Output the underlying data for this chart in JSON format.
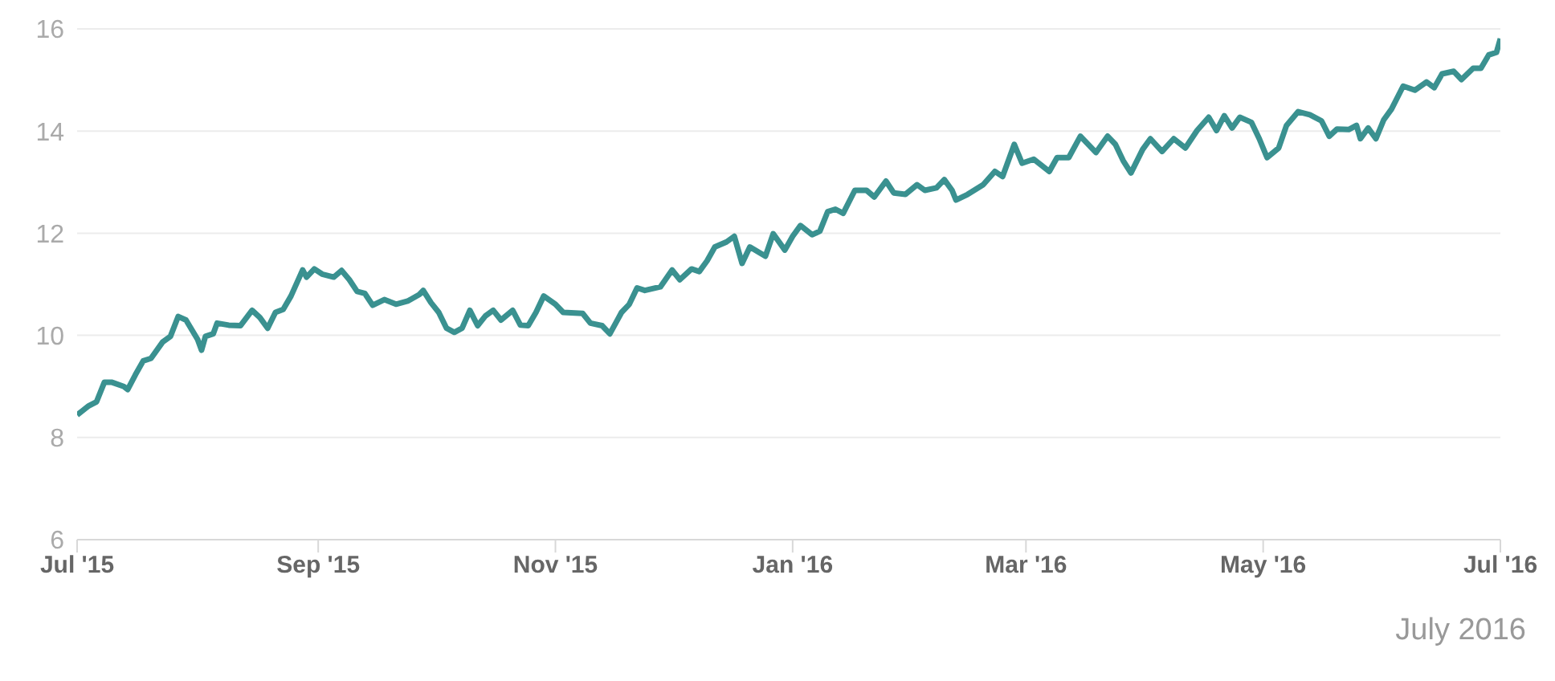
{
  "chart_data": {
    "type": "line",
    "x": [
      "2015-07-01",
      "2015-07-04",
      "2015-07-06",
      "2015-07-08",
      "2015-07-10",
      "2015-07-13",
      "2015-07-14",
      "2015-07-16",
      "2015-07-18",
      "2015-07-20",
      "2015-07-23",
      "2015-07-25",
      "2015-07-27",
      "2015-07-29",
      "2015-08-01",
      "2015-08-02",
      "2015-08-03",
      "2015-08-05",
      "2015-08-06",
      "2015-08-09",
      "2015-08-12",
      "2015-08-15",
      "2015-08-17",
      "2015-08-19",
      "2015-08-21",
      "2015-08-23",
      "2015-08-25",
      "2015-08-28",
      "2015-08-29",
      "2015-08-31",
      "2015-09-02",
      "2015-09-05",
      "2015-09-07",
      "2015-09-09",
      "2015-09-11",
      "2015-09-13",
      "2015-09-15",
      "2015-09-18",
      "2015-09-21",
      "2015-09-24",
      "2015-09-27",
      "2015-09-28",
      "2015-09-30",
      "2015-10-02",
      "2015-10-04",
      "2015-10-06",
      "2015-10-08",
      "2015-10-10",
      "2015-10-12",
      "2015-10-14",
      "2015-10-16",
      "2015-10-18",
      "2015-10-21",
      "2015-10-23",
      "2015-10-25",
      "2015-10-27",
      "2015-10-29",
      "2015-11-01",
      "2015-11-03",
      "2015-11-08",
      "2015-11-10",
      "2015-11-13",
      "2015-11-15",
      "2015-11-18",
      "2015-11-20",
      "2015-11-22",
      "2015-11-24",
      "2015-11-28",
      "2015-12-01",
      "2015-12-03",
      "2015-12-06",
      "2015-12-08",
      "2015-12-10",
      "2015-12-12",
      "2015-12-15",
      "2015-12-17",
      "2015-12-19",
      "2015-12-21",
      "2015-12-25",
      "2015-12-27",
      "2015-12-30",
      "2016-01-01",
      "2016-01-03",
      "2016-01-06",
      "2016-01-08",
      "2016-01-10",
      "2016-01-12",
      "2016-01-14",
      "2016-01-17",
      "2016-01-20",
      "2016-01-22",
      "2016-01-25",
      "2016-01-27",
      "2016-01-30",
      "2016-02-02",
      "2016-02-04",
      "2016-02-07",
      "2016-02-09",
      "2016-02-11",
      "2016-02-12",
      "2016-02-15",
      "2016-02-19",
      "2016-02-22",
      "2016-02-24",
      "2016-02-27",
      "2016-02-29",
      "2016-03-03",
      "2016-03-07",
      "2016-03-09",
      "2016-03-12",
      "2016-03-15",
      "2016-03-19",
      "2016-03-22",
      "2016-03-24",
      "2016-03-26",
      "2016-03-28",
      "2016-03-31",
      "2016-04-02",
      "2016-04-05",
      "2016-04-08",
      "2016-04-11",
      "2016-04-14",
      "2016-04-17",
      "2016-04-19",
      "2016-04-21",
      "2016-04-23",
      "2016-04-25",
      "2016-04-28",
      "2016-04-30",
      "2016-05-02",
      "2016-05-05",
      "2016-05-07",
      "2016-05-10",
      "2016-05-13",
      "2016-05-16",
      "2016-05-18",
      "2016-05-20",
      "2016-05-23",
      "2016-05-25",
      "2016-05-26",
      "2016-05-28",
      "2016-05-30",
      "2016-06-01",
      "2016-06-03",
      "2016-06-06",
      "2016-06-09",
      "2016-06-12",
      "2016-06-14",
      "2016-06-16",
      "2016-06-19",
      "2016-06-21",
      "2016-06-24",
      "2016-06-26",
      "2016-06-28",
      "2016-06-30",
      "2016-07-01"
    ],
    "series": [
      {
        "color": "#3a9190",
        "values": [
          8.44,
          8.62,
          8.7,
          9.08,
          9.08,
          9.0,
          8.94,
          9.23,
          9.5,
          9.55,
          9.87,
          9.98,
          10.37,
          10.3,
          9.92,
          9.71,
          9.98,
          10.03,
          10.24,
          10.2,
          10.19,
          10.49,
          10.35,
          10.14,
          10.45,
          10.51,
          10.77,
          11.28,
          11.14,
          11.3,
          11.2,
          11.14,
          11.27,
          11.09,
          10.86,
          10.82,
          10.59,
          10.7,
          10.61,
          10.67,
          10.8,
          10.88,
          10.64,
          10.45,
          10.14,
          10.06,
          10.14,
          10.49,
          10.19,
          10.38,
          10.49,
          10.3,
          10.49,
          10.2,
          10.19,
          10.45,
          10.77,
          10.61,
          10.45,
          10.43,
          10.24,
          10.19,
          10.03,
          10.45,
          10.61,
          10.93,
          10.88,
          10.95,
          11.28,
          11.09,
          11.3,
          11.25,
          11.46,
          11.73,
          11.83,
          11.94,
          11.41,
          11.73,
          11.55,
          11.99,
          11.67,
          11.94,
          12.15,
          11.97,
          12.04,
          12.42,
          12.47,
          12.39,
          12.84,
          12.84,
          12.71,
          13.02,
          12.79,
          12.76,
          12.95,
          12.84,
          12.89,
          13.05,
          12.84,
          12.65,
          12.76,
          12.95,
          13.21,
          13.11,
          13.74,
          13.37,
          13.45,
          13.21,
          13.48,
          13.48,
          13.9,
          13.58,
          13.9,
          13.74,
          13.42,
          13.18,
          13.64,
          13.85,
          13.6,
          13.85,
          13.67,
          14.01,
          14.27,
          14.01,
          14.3,
          14.06,
          14.27,
          14.17,
          13.85,
          13.48,
          13.67,
          14.11,
          14.38,
          14.32,
          14.2,
          13.9,
          14.04,
          14.03,
          14.11,
          13.85,
          14.06,
          13.85,
          14.22,
          14.43,
          14.88,
          14.8,
          14.96,
          14.85,
          15.12,
          15.17,
          15.01,
          15.23,
          15.23,
          15.49,
          15.54,
          15.81
        ]
      }
    ],
    "xlim": [
      "2015-07-01",
      "2016-07-01"
    ],
    "xticks": [
      {
        "value": "2015-07-01",
        "label": "Jul '15"
      },
      {
        "value": "2015-09-01",
        "label": "Sep '15"
      },
      {
        "value": "2015-11-01",
        "label": "Nov '15"
      },
      {
        "value": "2016-01-01",
        "label": "Jan '16"
      },
      {
        "value": "2016-03-01",
        "label": "Mar '16"
      },
      {
        "value": "2016-05-01",
        "label": "May '16"
      },
      {
        "value": "2016-07-01",
        "label": "Jul '16"
      }
    ],
    "ylim": [
      6,
      16
    ],
    "yticks": [
      6,
      8,
      10,
      12,
      14,
      16
    ],
    "grid": "y",
    "marker": "none",
    "line_style": "solid",
    "annotations": [
      "July 2016"
    ]
  }
}
